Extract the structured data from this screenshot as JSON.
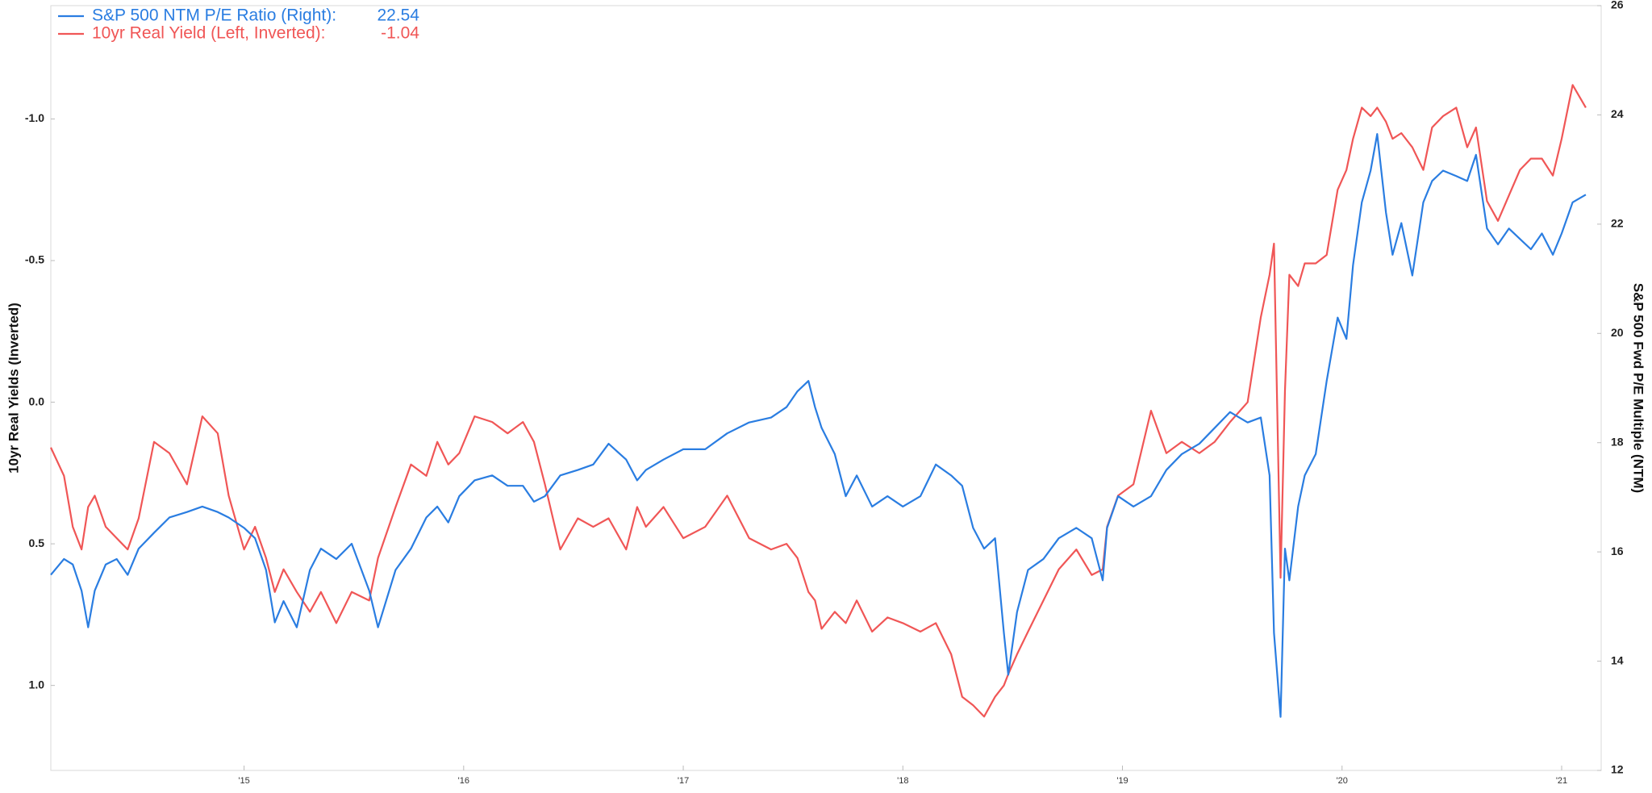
{
  "chart_data": {
    "type": "line",
    "y_title": "10yr Real Yields (Inverted)",
    "y2_title": "S&P 500 Fwd P/E Multiple (NTM)",
    "x": [
      2014.12,
      2014.18,
      2014.22,
      2014.26,
      2014.29,
      2014.32,
      2014.37,
      2014.42,
      2014.47,
      2014.52,
      2014.59,
      2014.66,
      2014.74,
      2014.81,
      2014.88,
      2014.93,
      2015.0,
      2015.05,
      2015.1,
      2015.14,
      2015.18,
      2015.24,
      2015.3,
      2015.35,
      2015.42,
      2015.49,
      2015.57,
      2015.61,
      2015.69,
      2015.76,
      2015.83,
      2015.88,
      2015.93,
      2015.98,
      2016.05,
      2016.13,
      2016.2,
      2016.27,
      2016.32,
      2016.37,
      2016.44,
      2016.52,
      2016.59,
      2016.66,
      2016.74,
      2016.79,
      2016.83,
      2016.91,
      2017.0,
      2017.1,
      2017.2,
      2017.3,
      2017.4,
      2017.47,
      2017.52,
      2017.57,
      2017.6,
      2017.63,
      2017.69,
      2017.74,
      2017.79,
      2017.86,
      2017.93,
      2018.0,
      2018.08,
      2018.15,
      2018.22,
      2018.27,
      2018.32,
      2018.37,
      2018.42,
      2018.46,
      2018.48,
      2018.52,
      2018.57,
      2018.64,
      2018.71,
      2018.79,
      2018.86,
      2018.91,
      2018.93,
      2018.98,
      2019.05,
      2019.13,
      2019.2,
      2019.27,
      2019.35,
      2019.42,
      2019.49,
      2019.57,
      2019.63,
      2019.67,
      2019.69,
      2019.72,
      2019.74,
      2019.76,
      2019.8,
      2019.83,
      2019.88,
      2019.93,
      2019.98,
      2020.02,
      2020.05,
      2020.09,
      2020.13,
      2020.16,
      2020.2,
      2020.23,
      2020.27,
      2020.32,
      2020.37,
      2020.41,
      2020.46,
      2020.52,
      2020.57,
      2020.61,
      2020.66,
      2020.71,
      2020.76,
      2020.81,
      2020.86,
      2020.91,
      2020.96,
      2021.0,
      2021.05,
      2021.11
    ],
    "xlim": [
      2014.12,
      2021.18
    ],
    "xticks": [
      {
        "value": 2015,
        "label": "'15"
      },
      {
        "value": 2016,
        "label": "'16"
      },
      {
        "value": 2017,
        "label": "'17"
      },
      {
        "value": 2018,
        "label": "'18"
      },
      {
        "value": 2019,
        "label": "'19"
      },
      {
        "value": 2020,
        "label": "'20"
      },
      {
        "value": 2021,
        "label": "'21"
      }
    ],
    "ylim": [
      -1.4,
      1.3
    ],
    "y_inverted": true,
    "yticks": [
      {
        "value": -1,
        "label": "-1.0"
      },
      -0.5,
      {
        "value": 0,
        "label": "0.0"
      },
      0.5,
      {
        "value": 1,
        "label": "1.0"
      }
    ],
    "y2lim": [
      12,
      26
    ],
    "y2ticks": [
      12,
      14,
      16,
      18,
      20,
      22,
      24,
      26
    ],
    "grid": false,
    "legend": "top-left",
    "series": [
      {
        "name": "S&P 500 NTM P/E Ratio (Right):",
        "last_value": 22.54,
        "color": "#2a7de1",
        "axis": "y2",
        "values": [
          15.58,
          15.87,
          15.77,
          15.29,
          14.62,
          15.29,
          15.77,
          15.87,
          15.58,
          16.06,
          16.35,
          16.63,
          16.73,
          16.83,
          16.73,
          16.63,
          16.44,
          16.25,
          15.67,
          14.71,
          15.1,
          14.62,
          15.67,
          16.06,
          15.87,
          16.15,
          15.29,
          14.62,
          15.67,
          16.06,
          16.63,
          16.83,
          16.54,
          17.02,
          17.31,
          17.4,
          17.21,
          17.21,
          16.92,
          17.02,
          17.4,
          17.5,
          17.6,
          17.98,
          17.69,
          17.31,
          17.5,
          17.69,
          17.88,
          17.88,
          18.17,
          18.37,
          18.46,
          18.65,
          18.94,
          19.13,
          18.65,
          18.27,
          17.79,
          17.02,
          17.4,
          16.83,
          17.02,
          16.83,
          17.02,
          17.6,
          17.4,
          17.21,
          16.44,
          16.06,
          16.25,
          14.52,
          13.75,
          14.9,
          15.67,
          15.87,
          16.25,
          16.44,
          16.25,
          15.48,
          16.44,
          17.02,
          16.83,
          17.02,
          17.5,
          17.79,
          17.98,
          18.27,
          18.56,
          18.37,
          18.46,
          17.4,
          14.52,
          12.98,
          16.06,
          15.48,
          16.83,
          17.4,
          17.79,
          19.13,
          20.29,
          19.9,
          21.25,
          22.4,
          22.98,
          23.65,
          22.21,
          21.44,
          22.02,
          21.06,
          22.4,
          22.79,
          22.98,
          22.88,
          22.79,
          23.27,
          21.92,
          21.63,
          21.92,
          21.73,
          21.54,
          21.83,
          21.44,
          21.83,
          22.4,
          22.54
        ]
      },
      {
        "name": "10yr Real Yield (Left, Inverted):",
        "last_value": -1.04,
        "color": "#f05656",
        "axis": "y",
        "values": [
          0.16,
          0.26,
          0.44,
          0.52,
          0.37,
          0.33,
          0.44,
          0.48,
          0.52,
          0.41,
          0.14,
          0.18,
          0.29,
          0.05,
          0.11,
          0.33,
          0.52,
          0.44,
          0.55,
          0.67,
          0.59,
          0.67,
          0.74,
          0.67,
          0.78,
          0.67,
          0.7,
          0.55,
          0.37,
          0.22,
          0.26,
          0.14,
          0.22,
          0.18,
          0.05,
          0.07,
          0.11,
          0.07,
          0.14,
          0.29,
          0.52,
          0.41,
          0.44,
          0.41,
          0.52,
          0.37,
          0.44,
          0.37,
          0.48,
          0.44,
          0.33,
          0.48,
          0.52,
          0.5,
          0.55,
          0.67,
          0.7,
          0.8,
          0.74,
          0.78,
          0.7,
          0.81,
          0.76,
          0.78,
          0.81,
          0.78,
          0.89,
          1.04,
          1.07,
          1.11,
          1.04,
          1.0,
          0.96,
          0.89,
          0.81,
          0.7,
          0.59,
          0.52,
          0.61,
          0.59,
          0.44,
          0.33,
          0.29,
          0.03,
          0.18,
          0.14,
          0.18,
          0.14,
          0.07,
          0.0,
          -0.3,
          -0.45,
          -0.56,
          0.62,
          -0.04,
          -0.45,
          -0.41,
          -0.49,
          -0.49,
          -0.52,
          -0.75,
          -0.82,
          -0.93,
          -1.04,
          -1.01,
          -1.04,
          -0.99,
          -0.93,
          -0.95,
          -0.9,
          -0.82,
          -0.97,
          -1.01,
          -1.04,
          -0.9,
          -0.97,
          -0.71,
          -0.64,
          -0.73,
          -0.82,
          -0.86,
          -0.86,
          -0.8,
          -0.93,
          -1.12,
          -1.04
        ]
      }
    ]
  }
}
